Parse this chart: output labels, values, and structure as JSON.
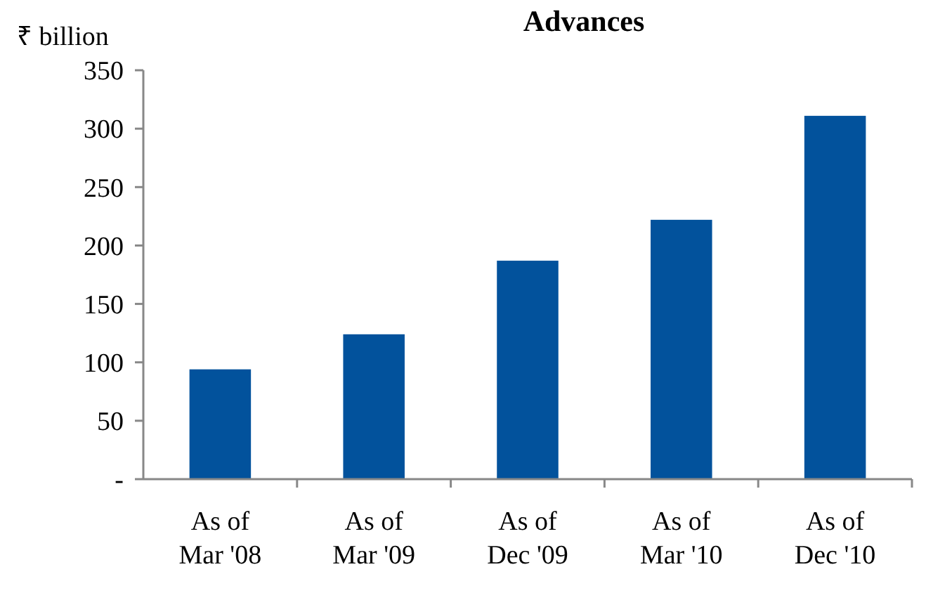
{
  "chart_data": {
    "type": "bar",
    "title": "Advances",
    "ylabel": "₹ billion",
    "categories": [
      "As of\nMar '08",
      "As of\nMar '09",
      "As of\nDec '09",
      "As of\nMar '10",
      "As of\nDec '10"
    ],
    "values": [
      94,
      124,
      187,
      222,
      311
    ],
    "color": "#02529c",
    "ylim": [
      0,
      350
    ],
    "yticks": [
      {
        "value": 0,
        "label": "-"
      },
      50,
      100,
      150,
      200,
      250,
      300,
      350
    ],
    "grid": false
  }
}
